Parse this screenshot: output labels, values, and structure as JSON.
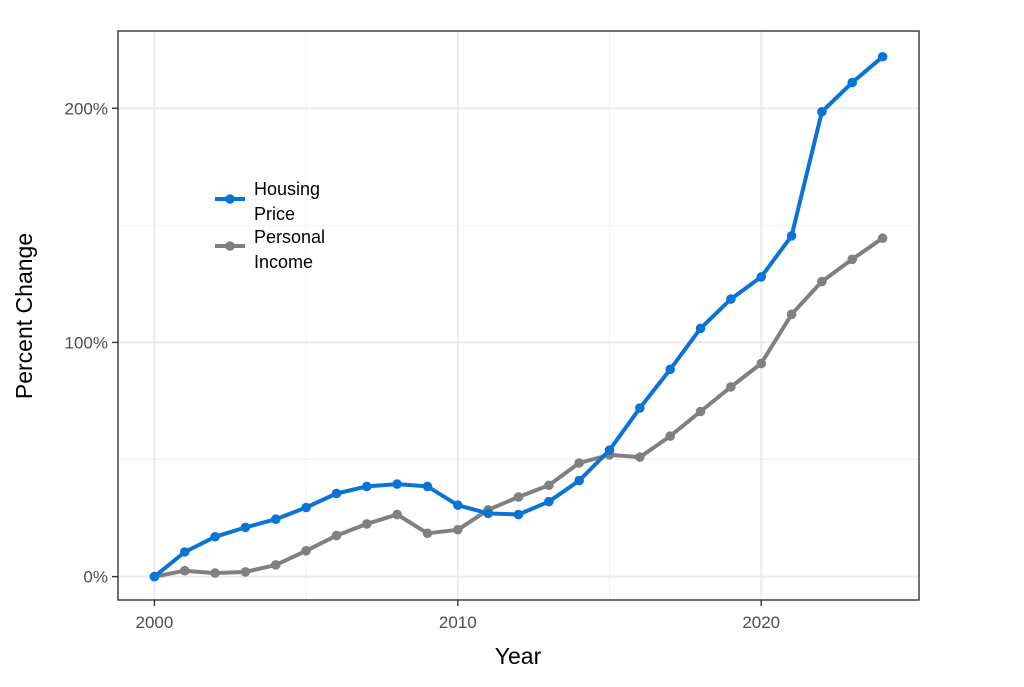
{
  "chart_data": {
    "type": "line",
    "xlabel": "Year",
    "ylabel": "Percent Change",
    "xlim": [
      1998.8,
      2025.2
    ],
    "ylim": [
      -10,
      233
    ],
    "x_ticks": [
      2000,
      2010,
      2020
    ],
    "x_tick_labels": [
      "2000",
      "2010",
      "2020"
    ],
    "y_ticks": [
      0,
      100,
      200
    ],
    "y_tick_labels": [
      "0%",
      "100%",
      "200%"
    ],
    "grid": true,
    "legend_position": "top-left",
    "x": [
      2000,
      2001,
      2002,
      2003,
      2004,
      2005,
      2006,
      2007,
      2008,
      2009,
      2010,
      2011,
      2012,
      2013,
      2014,
      2015,
      2016,
      2017,
      2018,
      2019,
      2020,
      2021,
      2022,
      2023,
      2024
    ],
    "series": [
      {
        "name": "Housing Price",
        "legend_lines": [
          "Housing",
          "Price"
        ],
        "color": "#0a74d6",
        "values": [
          0,
          10.5,
          17,
          21,
          24.5,
          29.5,
          35.5,
          38.5,
          39.5,
          38.5,
          30.5,
          27,
          26.5,
          32,
          41,
          54,
          72,
          88.5,
          106,
          118.5,
          128,
          145.5,
          198.5,
          211,
          222
        ]
      },
      {
        "name": "Personal Income",
        "legend_lines": [
          "Personal",
          "Income"
        ],
        "color": "#808080",
        "values": [
          0,
          2.5,
          1.5,
          2,
          5,
          11,
          17.5,
          22.5,
          26.5,
          18.5,
          20,
          28.5,
          34,
          39,
          48.5,
          52,
          51,
          60,
          70.5,
          81,
          91,
          112,
          126,
          135.5,
          144.5
        ]
      }
    ]
  }
}
